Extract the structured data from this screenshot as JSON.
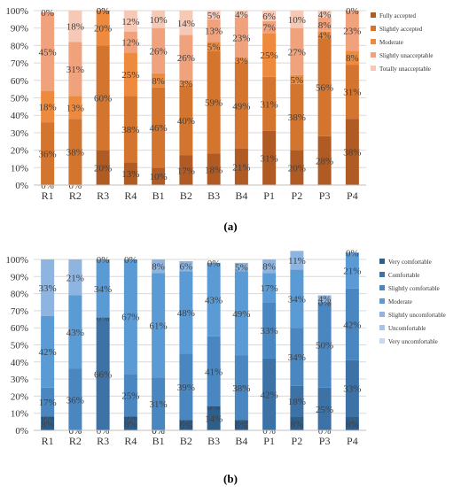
{
  "chart_data": [
    {
      "type": "bar",
      "stacked": true,
      "panel_label": "(a)",
      "categories": [
        "R1",
        "R2",
        "R3",
        "R4",
        "B1",
        "B2",
        "B3",
        "B4",
        "P1",
        "P2",
        "P3",
        "P4"
      ],
      "ylim": [
        0,
        100
      ],
      "yticks": [
        "0%",
        "10%",
        "20%",
        "30%",
        "40%",
        "50%",
        "60%",
        "70%",
        "80%",
        "90%",
        "100%"
      ],
      "legend_position": "right",
      "series": [
        {
          "name": "Fully accepted",
          "color": "#b05a24",
          "values": [
            0,
            0,
            20,
            13,
            10,
            17,
            18,
            21,
            31,
            20,
            28,
            38
          ],
          "labels": [
            "0%",
            "0%",
            "20%",
            "13%",
            "10%",
            "17%",
            "18%",
            "21%",
            "31%",
            "20%",
            "28%",
            "38%"
          ]
        },
        {
          "name": "Slightly accepted",
          "color": "#d4752f",
          "values": [
            36,
            38,
            60,
            38,
            46,
            40,
            59,
            49,
            31,
            38,
            56,
            31
          ],
          "labels": [
            "36%",
            "38%",
            "60%",
            "38%",
            "46%",
            "40%",
            "59%",
            "49%",
            "31%",
            "38%",
            "56%",
            "31%"
          ]
        },
        {
          "name": "Moderate",
          "color": "#ee8a3d",
          "values": [
            18,
            13,
            20,
            25,
            8,
            3,
            5,
            3,
            25,
            5,
            4,
            8
          ],
          "labels": [
            "18%",
            "13%",
            "20%",
            "25%",
            "8%",
            "3%",
            "5%",
            "3%",
            "25%",
            "5%",
            "4%",
            "8%"
          ]
        },
        {
          "name": "Slightly unacceptable",
          "color": "#f0a27d",
          "values": [
            45,
            31,
            0,
            12,
            26,
            26,
            13,
            23,
            7,
            27,
            8,
            23
          ],
          "labels": [
            "45%",
            "31%",
            "0%",
            "12%",
            "26%",
            "26%",
            "13%",
            "23%",
            "7%",
            "27%",
            "8%",
            "23%"
          ]
        },
        {
          "name": "Totally unacceptable",
          "color": "#f6c9b6",
          "values": [
            0,
            18,
            0,
            12,
            10,
            14,
            5,
            4,
            6,
            10,
            4,
            0
          ],
          "labels": [
            "0%",
            "18%",
            "0%",
            "12%",
            "10%",
            "14%",
            "5%",
            "4%",
            "6%",
            "10%",
            "4%",
            "0%"
          ]
        }
      ]
    },
    {
      "type": "bar",
      "stacked": true,
      "panel_label": "(b)",
      "categories": [
        "R1",
        "R2",
        "R3",
        "R4",
        "B1",
        "B2",
        "B3",
        "B4",
        "P1",
        "P2",
        "P3",
        "P4"
      ],
      "ylim": [
        0,
        100
      ],
      "yticks": [
        "0%",
        "10%",
        "20%",
        "30%",
        "40%",
        "50%",
        "60%",
        "70%",
        "80%",
        "90%",
        "100%"
      ],
      "legend_position": "right",
      "series": [
        {
          "name": "Very comfortable",
          "color": "#2e5e8a",
          "values": [
            8,
            0,
            0,
            8,
            0,
            6,
            14,
            6,
            0,
            8,
            0,
            8
          ],
          "labels": [
            "8%",
            "0%",
            "0%",
            "8%",
            "0%",
            "6%",
            "14%",
            "6%",
            "0%",
            "8%",
            "0%",
            "8%"
          ]
        },
        {
          "name": "Comfortable",
          "color": "#3d72a6",
          "values": [
            0,
            0,
            66,
            0,
            0,
            0,
            0,
            0,
            42,
            18,
            25,
            33
          ],
          "labels": [
            "0%",
            "0%",
            "66%",
            "0%",
            "0%",
            "0%",
            "0%",
            "0%",
            "42%",
            "18%",
            "25%",
            "33%"
          ]
        },
        {
          "name": "Slightly comfortable",
          "color": "#4a86bf",
          "values": [
            17,
            36,
            0,
            25,
            31,
            39,
            41,
            38,
            33,
            34,
            50,
            42
          ],
          "labels": [
            "17%",
            "36%",
            "0%",
            "25%",
            "31%",
            "39%",
            "41%",
            "38%",
            "33%",
            "34%",
            "50%",
            "42%"
          ]
        },
        {
          "name": "Moderate",
          "color": "#5b9bd5",
          "values": [
            42,
            43,
            34,
            67,
            61,
            48,
            43,
            49,
            17,
            34,
            0,
            21
          ],
          "labels": [
            "42%",
            "43%",
            "34%",
            "67%",
            "61%",
            "48%",
            "43%",
            "49%",
            "17%",
            "34%",
            "0%",
            "21%"
          ]
        },
        {
          "name": "Slightly uncomfortable",
          "color": "#8eb4e0",
          "values": [
            33,
            21,
            0,
            0,
            8,
            6,
            0,
            5,
            8,
            11,
            4,
            0
          ],
          "labels": [
            "33%",
            "21%",
            "0%",
            "0%",
            "8%",
            "6%",
            "0%",
            "5%",
            "8%",
            "11%",
            "4%",
            "0%"
          ]
        },
        {
          "name": "Uncomfortable",
          "color": "#a8c5e8",
          "values": [
            0,
            0,
            0,
            0,
            0,
            0,
            0,
            0,
            0,
            0,
            0,
            0
          ],
          "labels": [
            "0%",
            "0%",
            "0%",
            "0%",
            "0%",
            "0%",
            "0%",
            "0%",
            "0%",
            "0%",
            "0%",
            "0%"
          ]
        },
        {
          "name": "Very uncomfortable",
          "color": "#c5d9f0",
          "values": [
            0,
            0,
            0,
            0,
            0,
            0,
            0,
            0,
            0,
            0,
            0,
            0
          ],
          "labels": [
            "0%",
            "0%",
            "0%",
            "0%",
            "0%",
            "0%",
            "0%",
            "0%",
            "0%",
            "0%",
            "0%",
            "0%"
          ]
        }
      ]
    }
  ]
}
